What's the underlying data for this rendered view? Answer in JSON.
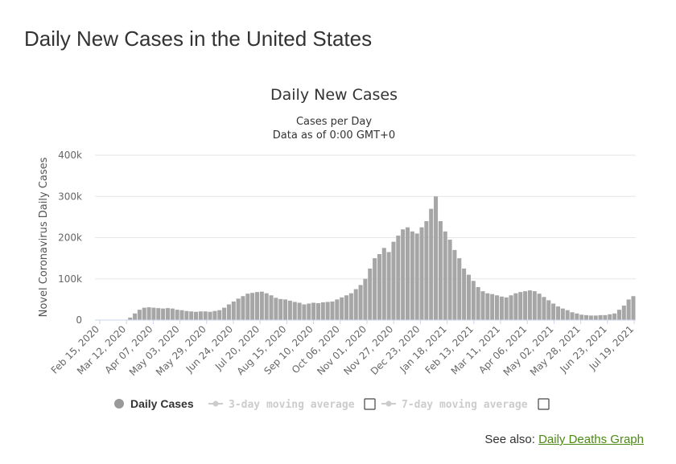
{
  "page": {
    "heading": "Daily New Cases in the United States",
    "see_also_label": "See also:",
    "see_also_link": "Daily Deaths Graph"
  },
  "colors": {
    "bar": "#a6a6a6",
    "grid": "#e6e6e6",
    "text": "#333333",
    "axis_text": "#666666",
    "link": "#4b8a12",
    "legend_inactive": "#cccccc"
  },
  "chart_data": {
    "type": "bar",
    "title": "Daily New Cases",
    "subtitle_lines": [
      "Cases per Day",
      "Data as of 0:00 GMT+0"
    ],
    "ylabel": "Novel Coronavirus Daily Cases",
    "xlabel": "",
    "ylim": [
      0,
      400000
    ],
    "y_ticks": [
      0,
      100000,
      200000,
      300000,
      400000
    ],
    "y_tick_labels": [
      "0",
      "100k",
      "200k",
      "300k",
      "400k"
    ],
    "x_tick_labels": [
      "Feb 15, 2020",
      "Mar 12, 2020",
      "Apr 07, 2020",
      "May 03, 2020",
      "May 29, 2020",
      "Jun 24, 2020",
      "Jul 20, 2020",
      "Aug 15, 2020",
      "Sep 10, 2020",
      "Oct 06, 2020",
      "Nov 01, 2020",
      "Nov 27, 2020",
      "Dec 23, 2020",
      "Jan 18, 2021",
      "Feb 13, 2021",
      "Mar 11, 2021",
      "Apr 06, 2021",
      "May 02, 2021",
      "May 28, 2021",
      "Jun 23, 2021",
      "Jul 19, 2021"
    ],
    "grid": true,
    "legend_position": "bottom",
    "legend": [
      {
        "label": "Daily Cases",
        "active": true
      },
      {
        "label": "3-day moving average",
        "active": false
      },
      {
        "label": "7-day moving average",
        "active": false
      }
    ],
    "series": [
      {
        "name": "Daily Cases",
        "x_start": "2020-02-15",
        "x_step_days": 5,
        "values": [
          0,
          0,
          0,
          0,
          0,
          200,
          1000,
          6000,
          16000,
          25000,
          30000,
          31000,
          30000,
          29000,
          28000,
          29000,
          28000,
          25000,
          24000,
          22000,
          21000,
          20000,
          21000,
          21000,
          20000,
          22000,
          24000,
          30000,
          38000,
          45000,
          52000,
          58000,
          64000,
          66000,
          68000,
          69000,
          65000,
          60000,
          54000,
          51000,
          50000,
          47000,
          44000,
          42000,
          38000,
          40000,
          42000,
          41000,
          43000,
          44000,
          45000,
          50000,
          55000,
          60000,
          65000,
          75000,
          85000,
          100000,
          125000,
          150000,
          160000,
          175000,
          165000,
          190000,
          205000,
          220000,
          225000,
          215000,
          210000,
          225000,
          240000,
          270000,
          300000,
          240000,
          215000,
          195000,
          170000,
          150000,
          125000,
          110000,
          95000,
          80000,
          70000,
          65000,
          63000,
          60000,
          57000,
          55000,
          60000,
          65000,
          68000,
          70000,
          72000,
          70000,
          64000,
          56000,
          48000,
          40000,
          33000,
          28000,
          24000,
          19000,
          16000,
          13000,
          12000,
          11000,
          11000,
          12000,
          12000,
          14000,
          16000,
          25000,
          35000,
          50000,
          58000
        ]
      }
    ]
  }
}
